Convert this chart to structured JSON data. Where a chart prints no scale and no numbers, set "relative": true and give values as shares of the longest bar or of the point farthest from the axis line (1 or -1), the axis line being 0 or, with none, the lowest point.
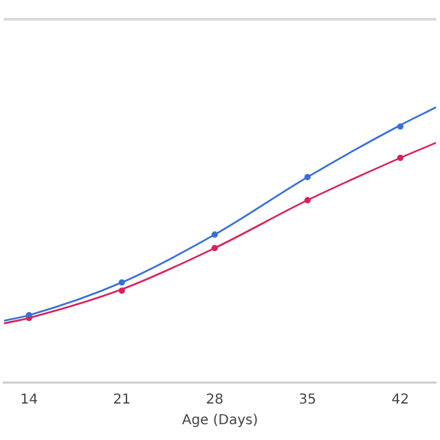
{
  "chart_data": {
    "type": "line",
    "xlabel": "Age (Days)",
    "relative": true,
    "xlim": [
      12.1,
      44.7
    ],
    "xticks": [
      14,
      21,
      28,
      35,
      42
    ],
    "grid": false,
    "legend": false,
    "series": [
      {
        "color": "#3a6fd8",
        "marker": "none",
        "x": [
          12.1,
          14,
          21,
          28,
          35,
          42,
          44.7
        ],
        "values": [
          0.224,
          0.244,
          0.363,
          0.537,
          0.746,
          0.935,
          1
        ]
      },
      {
        "color": "#d6245a",
        "marker": "none",
        "x": [
          12.1,
          14,
          21,
          28,
          35,
          42,
          44.7
        ],
        "values": [
          0.214,
          0.234,
          0.338,
          0.488,
          0.662,
          0.816,
          0.871
        ]
      },
      {
        "type": "scatter",
        "color": "#3a6fd8",
        "marker": "circle",
        "x": [
          14,
          21,
          28,
          35,
          42
        ],
        "values": [
          0.244,
          0.363,
          0.537,
          0.746,
          0.93
        ]
      },
      {
        "type": "scatter",
        "color": "#d6245a",
        "marker": "circle",
        "x": [
          14,
          21,
          28,
          35,
          42
        ],
        "values": [
          0.234,
          0.333,
          0.488,
          0.662,
          0.816
        ]
      }
    ]
  }
}
